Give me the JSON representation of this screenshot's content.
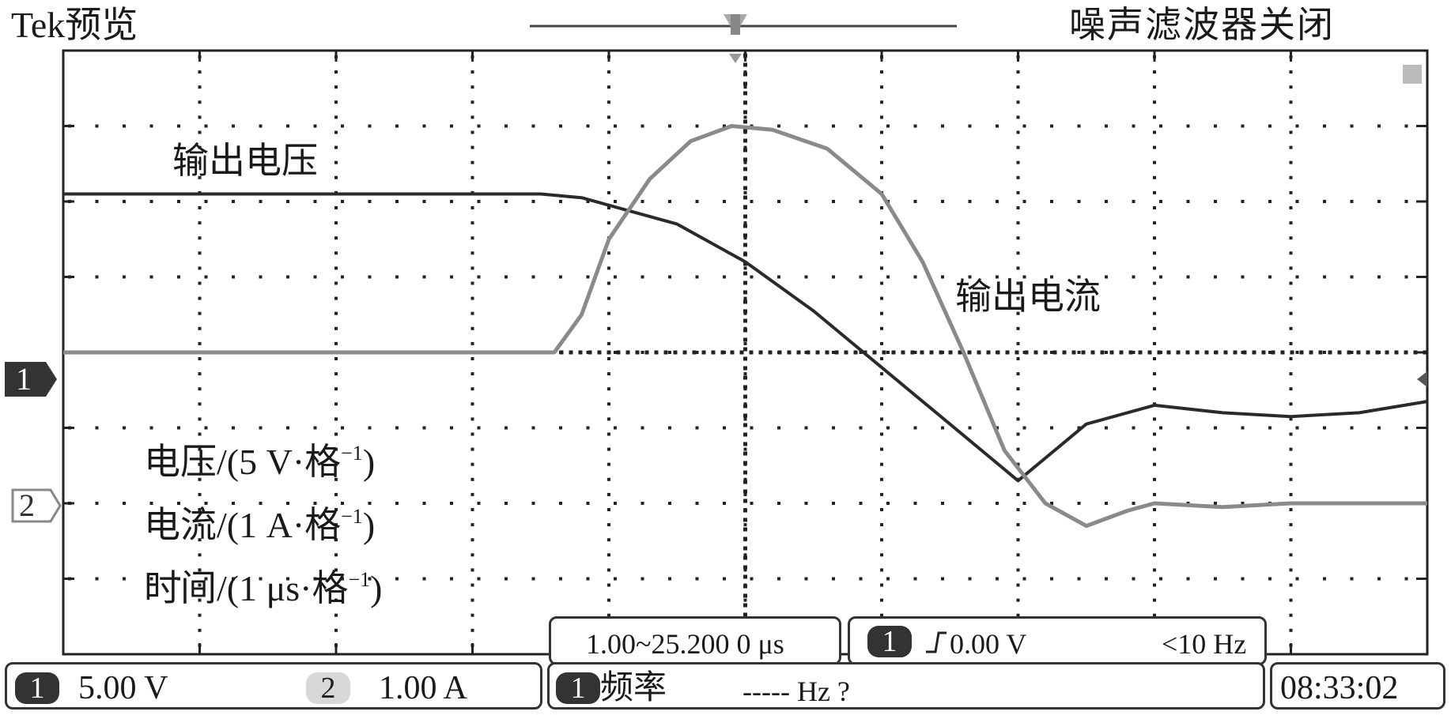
{
  "header": {
    "title": "Tek预览",
    "noise_filter_status": "噪声滤波器关闭"
  },
  "markers": {
    "ch1": "1",
    "ch2": "2"
  },
  "annotations": {
    "voltage_trace_label": "输出电压",
    "current_trace_label": "输出电流",
    "scale_voltage": "电压/(5 V·格",
    "scale_current": "电流/(1 A·格",
    "scale_time": "时间/(1 μs·格",
    "scale_exponent": "−1",
    "scale_close": ")"
  },
  "timebase": {
    "label": "1.00~25.200 0 μs"
  },
  "trigger": {
    "channel": "1",
    "level": "0.00 V",
    "rate": "<10 Hz"
  },
  "status": {
    "ch1_chip": "1",
    "ch1_scale": "5.00 V",
    "ch2_chip": "2",
    "ch2_scale": "1.00 A",
    "meas_chip": "1",
    "meas_label": "频率",
    "meas_value": "----- Hz ?",
    "clock": "08:33:02"
  },
  "chart_data": {
    "type": "line",
    "x_divisions": 10,
    "y_divisions": 8,
    "x_unit": "μs",
    "grid": true,
    "series": [
      {
        "name": "输出电压",
        "color": "#2a2a2a",
        "x": [
          0,
          3.5,
          3.8,
          4.5,
          5.0,
          5.5,
          6.0,
          6.5,
          7.0,
          7.5,
          8.0,
          8.5,
          9.0,
          9.5,
          10.0
        ],
        "y": [
          6.1,
          6.1,
          6.05,
          5.7,
          5.2,
          4.55,
          3.8,
          3.05,
          2.3,
          3.05,
          3.3,
          3.2,
          3.15,
          3.2,
          3.35
        ]
      },
      {
        "name": "输出电流",
        "color": "#8a8a8a",
        "x": [
          0,
          3.6,
          3.8,
          4.0,
          4.3,
          4.6,
          4.9,
          5.2,
          5.6,
          6.0,
          6.3,
          6.6,
          6.9,
          7.2,
          7.5,
          7.8,
          8.0,
          8.5,
          9.0,
          10.0
        ],
        "y": [
          4.0,
          4.0,
          4.5,
          5.5,
          6.3,
          6.8,
          7.0,
          6.95,
          6.7,
          6.1,
          5.2,
          4.0,
          2.7,
          2.0,
          1.7,
          1.9,
          2.0,
          1.95,
          2.0,
          2.0
        ]
      }
    ]
  }
}
